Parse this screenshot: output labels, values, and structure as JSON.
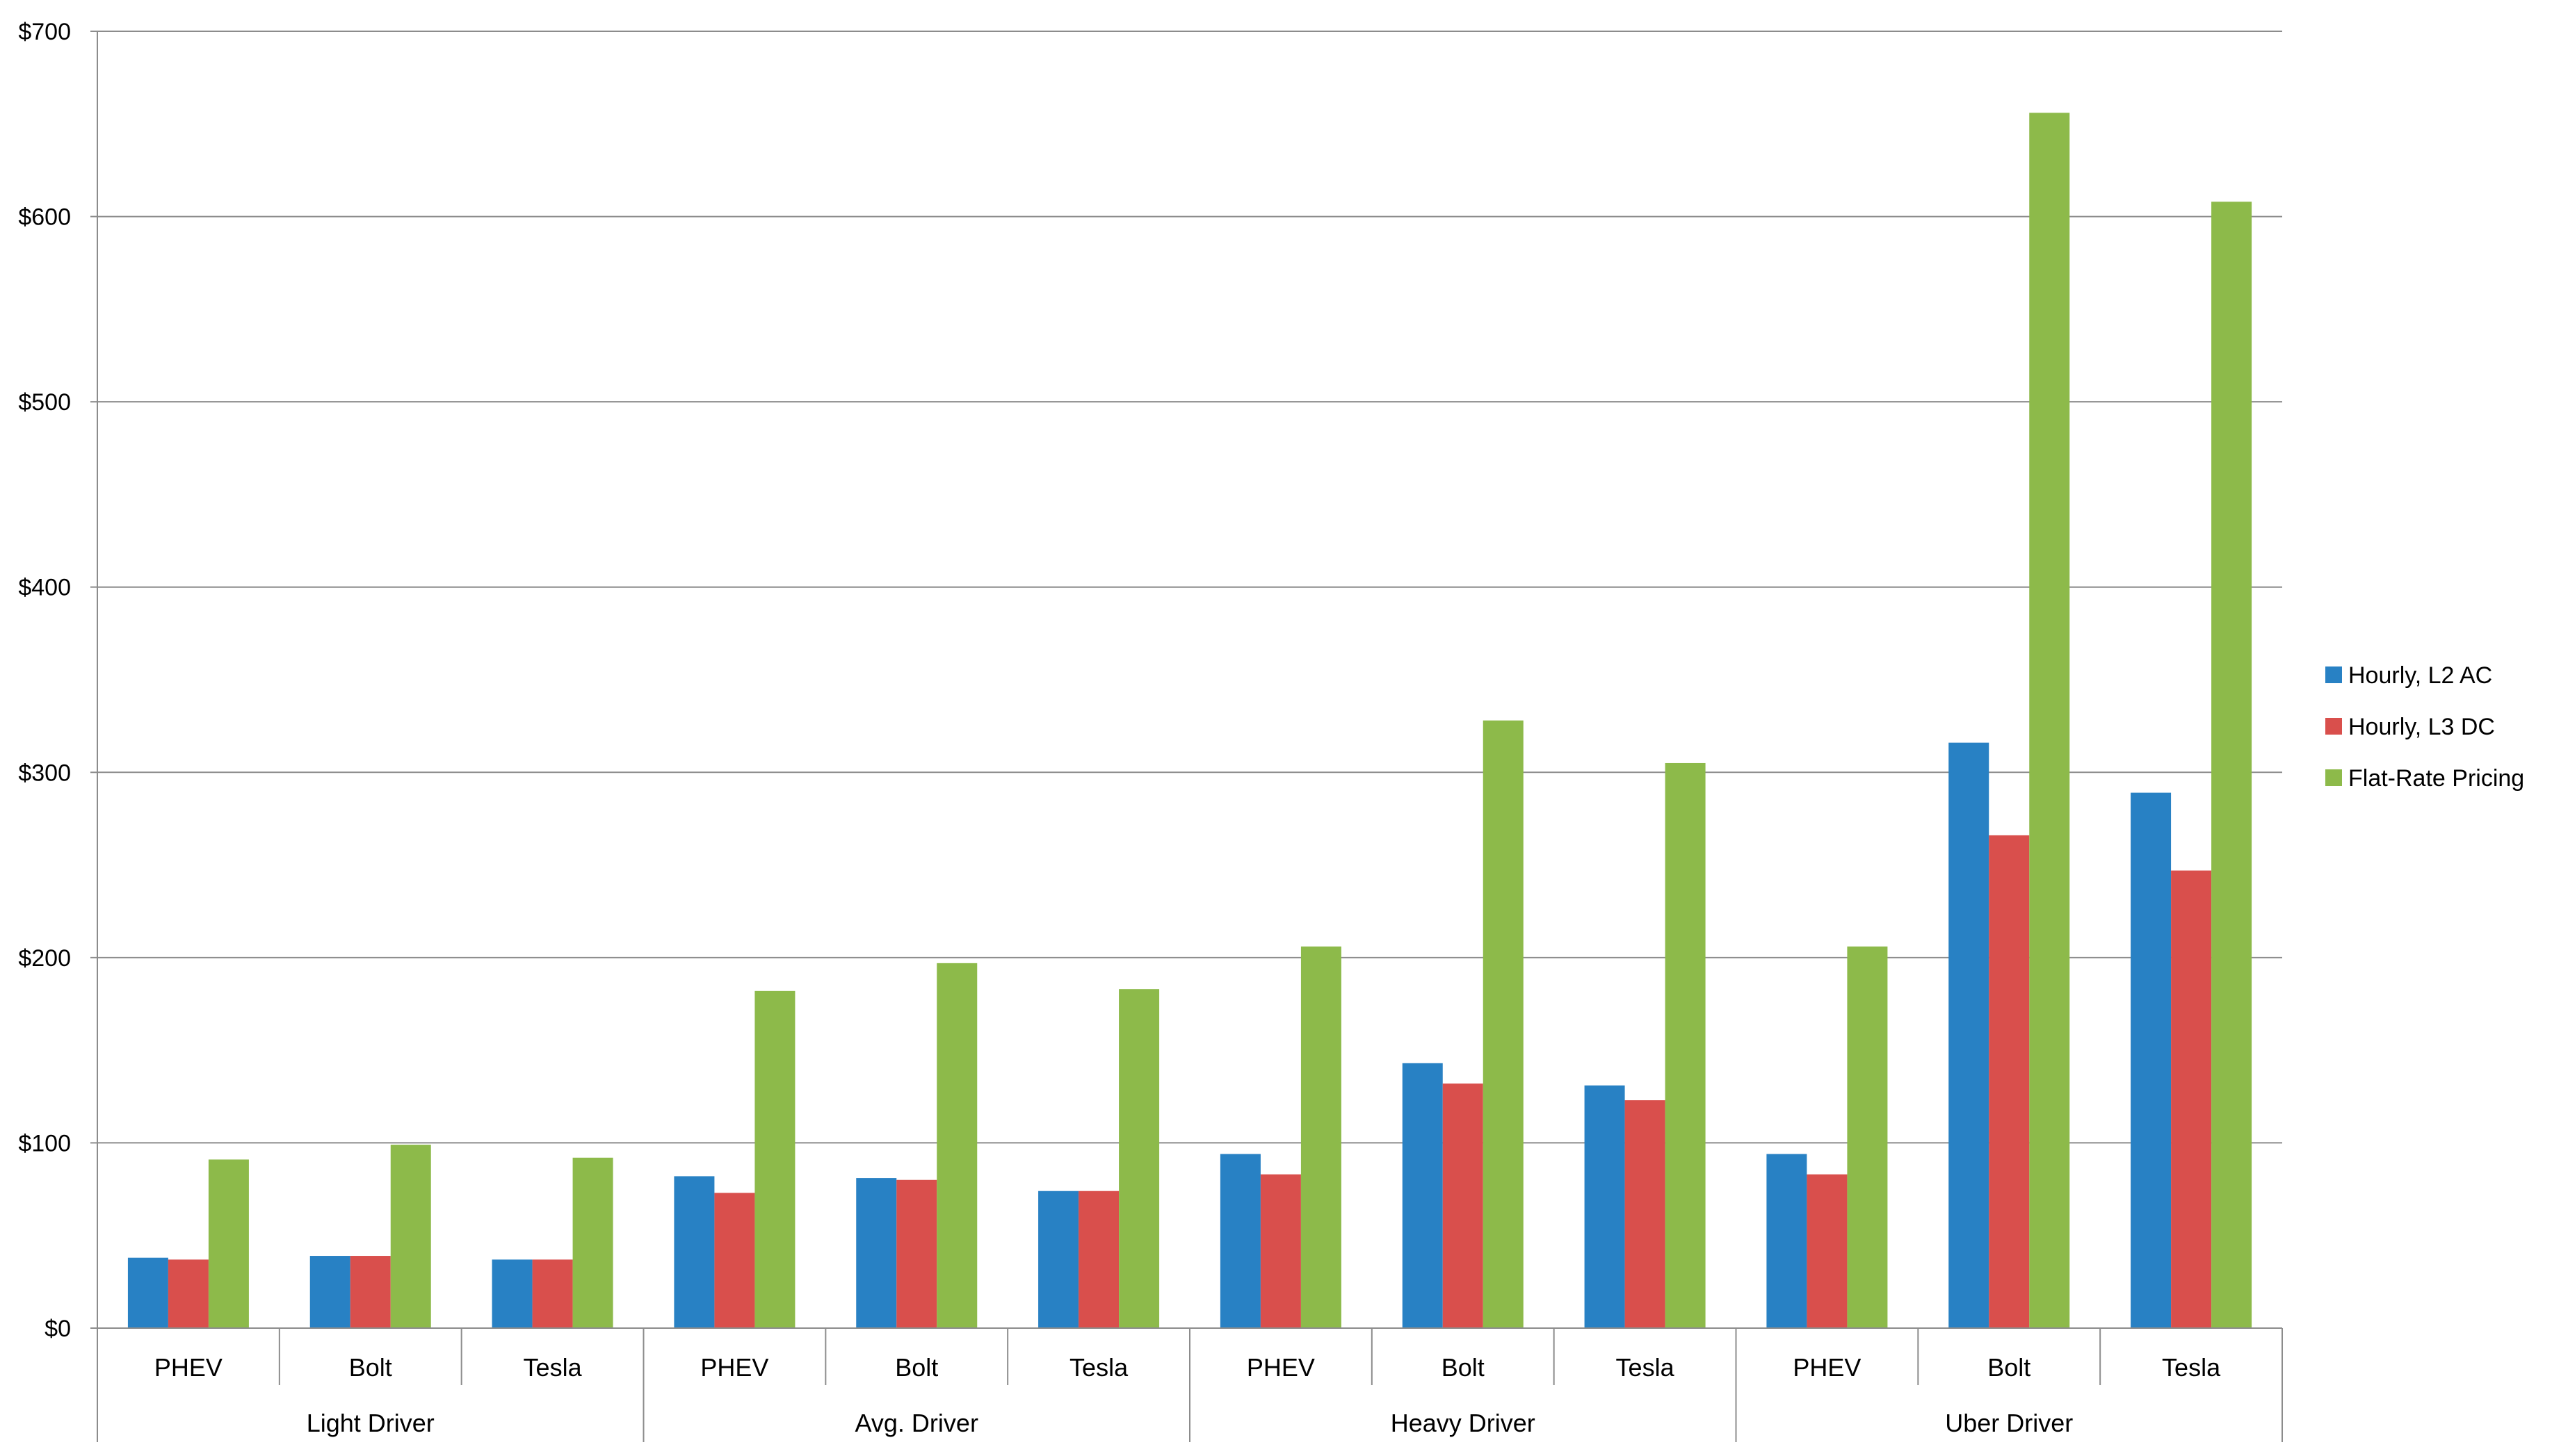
{
  "chart_data": {
    "type": "bar",
    "groups": [
      {
        "label": "Light Driver",
        "categories": [
          "PHEV",
          "Bolt",
          "Tesla"
        ]
      },
      {
        "label": "Avg. Driver",
        "categories": [
          "PHEV",
          "Bolt",
          "Tesla"
        ]
      },
      {
        "label": "Heavy Driver",
        "categories": [
          "PHEV",
          "Bolt",
          "Tesla"
        ]
      },
      {
        "label": "Uber Driver",
        "categories": [
          "PHEV",
          "Bolt",
          "Tesla"
        ]
      }
    ],
    "series": [
      {
        "name": "Hourly, L2 AC",
        "color": "#2881C4",
        "values": [
          38,
          39,
          37,
          82,
          81,
          74,
          94,
          143,
          131,
          94,
          316,
          289
        ]
      },
      {
        "name": "Hourly, L3 DC",
        "color": "#D94F4C",
        "values": [
          37,
          39,
          37,
          73,
          80,
          74,
          83,
          132,
          123,
          83,
          266,
          247
        ]
      },
      {
        "name": "Flat-Rate Pricing",
        "color": "#8DBA4A",
        "values": [
          91,
          99,
          92,
          182,
          197,
          183,
          206,
          328,
          305,
          206,
          656,
          608
        ]
      }
    ],
    "yticks": [
      "$0",
      "$100",
      "$200",
      "$300",
      "$400",
      "$500",
      "$600",
      "$700"
    ],
    "ylim": [
      0,
      700
    ],
    "title": "",
    "xlabel": "",
    "ylabel": "",
    "grid": true,
    "legend_position": "right"
  }
}
